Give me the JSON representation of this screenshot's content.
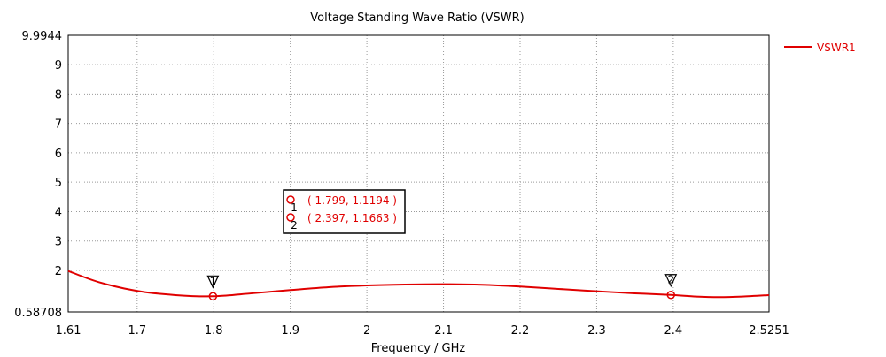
{
  "chart_data": {
    "type": "line",
    "title": "Voltage Standing Wave Ratio (VSWR)",
    "xlabel": "Frequency / GHz",
    "ylabel": "",
    "xlim": [
      1.61,
      2.5251
    ],
    "ylim": [
      0.58708,
      9.9944
    ],
    "grid": true,
    "legend": "top-right",
    "x_ticks": [
      {
        "value": 1.61,
        "label": "1.61"
      },
      {
        "value": 1.7,
        "label": "1.7"
      },
      {
        "value": 1.8,
        "label": "1.8"
      },
      {
        "value": 1.9,
        "label": "1.9"
      },
      {
        "value": 2.0,
        "label": "2"
      },
      {
        "value": 2.1,
        "label": "2.1"
      },
      {
        "value": 2.2,
        "label": "2.2"
      },
      {
        "value": 2.3,
        "label": "2.3"
      },
      {
        "value": 2.4,
        "label": "2.4"
      },
      {
        "value": 2.5251,
        "label": "2.5251"
      }
    ],
    "y_ticks": [
      {
        "value": 0.58708,
        "label": "0.58708"
      },
      {
        "value": 2,
        "label": "2"
      },
      {
        "value": 3,
        "label": "3"
      },
      {
        "value": 4,
        "label": "4"
      },
      {
        "value": 5,
        "label": "5"
      },
      {
        "value": 6,
        "label": "6"
      },
      {
        "value": 7,
        "label": "7"
      },
      {
        "value": 8,
        "label": "8"
      },
      {
        "value": 9,
        "label": "9"
      },
      {
        "value": 9.9944,
        "label": "9.9944"
      }
    ],
    "series": [
      {
        "name": "VSWR1",
        "color": "#e00000",
        "x": [
          1.61,
          1.65,
          1.7,
          1.75,
          1.799,
          1.85,
          1.9,
          1.95,
          2.0,
          2.05,
          2.1,
          2.15,
          2.2,
          2.25,
          2.3,
          2.35,
          2.397,
          2.43,
          2.46,
          2.49,
          2.5251
        ],
        "y": [
          1.98,
          1.6,
          1.3,
          1.16,
          1.1194,
          1.22,
          1.33,
          1.43,
          1.49,
          1.52,
          1.53,
          1.51,
          1.45,
          1.37,
          1.29,
          1.22,
          1.1663,
          1.11,
          1.09,
          1.11,
          1.16
        ]
      }
    ],
    "markers": [
      {
        "id": "1",
        "x": 1.799,
        "y": 1.1194,
        "label": "( 1.799, 1.1194 )"
      },
      {
        "id": "2",
        "x": 2.397,
        "y": 1.1663,
        "label": "( 2.397, 1.1663 )"
      }
    ]
  }
}
